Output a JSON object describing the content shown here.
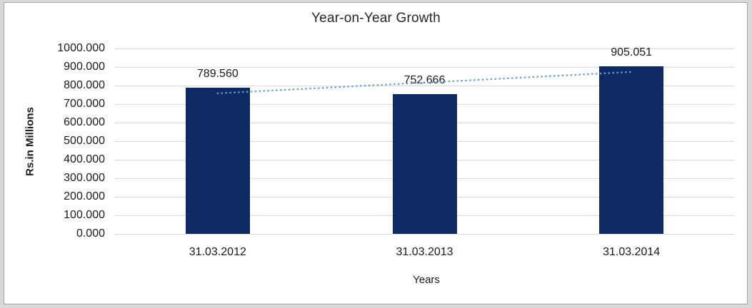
{
  "chart_data": {
    "type": "bar",
    "title": "Year-on-Year Growth",
    "xlabel": "Years",
    "ylabel": "Rs.in Millions",
    "categories": [
      "31.03.2012",
      "31.03.2013",
      "31.03.2014"
    ],
    "values": [
      789.56,
      752.666,
      905.051
    ],
    "data_labels": [
      "789.560",
      "752.666",
      "905.051"
    ],
    "ylim": [
      0,
      1000
    ],
    "yticks": [
      {
        "label": "0.000",
        "value": 0
      },
      {
        "label": "100.000",
        "value": 100
      },
      {
        "label": "200.000",
        "value": 200
      },
      {
        "label": "300.000",
        "value": 300
      },
      {
        "label": "400.000",
        "value": 400
      },
      {
        "label": "500.000",
        "value": 500
      },
      {
        "label": "600.000",
        "value": 600
      },
      {
        "label": "700.000",
        "value": 700
      },
      {
        "label": "800.000",
        "value": 800
      },
      {
        "label": "900.000",
        "value": 900
      },
      {
        "label": "1000.000",
        "value": 1000
      }
    ],
    "grid": true,
    "legend": "none",
    "colors": {
      "bar": "#0d2a63",
      "trendline": "#6a9bd2",
      "gridline": "#d9d9d9",
      "frame_band": "#d9d9d9",
      "frame_border": "#a6a6a6",
      "text": "#1a1a1a"
    },
    "trendline": {
      "type": "linear",
      "style": "dotted"
    }
  }
}
